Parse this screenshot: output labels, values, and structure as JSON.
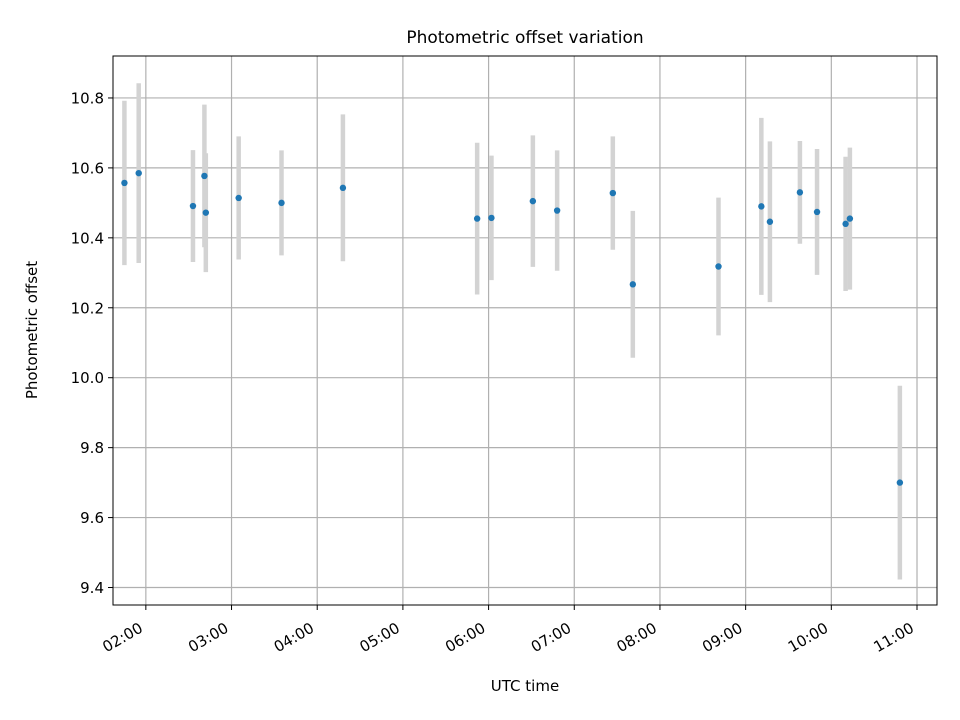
{
  "chart_data": {
    "type": "scatter",
    "title": "Photometric offset variation",
    "xlabel": "UTC time",
    "ylabel": "Photometric offset",
    "x_tick_labels": [
      "02:00",
      "03:00",
      "04:00",
      "05:00",
      "06:00",
      "07:00",
      "08:00",
      "09:00",
      "10:00",
      "11:00"
    ],
    "x_ticks": [
      "02:00",
      "03:00",
      "04:00",
      "05:00",
      "06:00",
      "07:00",
      "08:00",
      "09:00",
      "10:00",
      "11:00"
    ],
    "y_ticks": [
      9.4,
      9.6,
      9.8,
      10.0,
      10.2,
      10.4,
      10.6,
      10.8
    ],
    "y_tick_labels": [
      "9.4",
      "9.6",
      "9.8",
      "10.0",
      "10.2",
      "10.4",
      "10.6",
      "10.8"
    ],
    "xlim": [
      "01:37",
      "11:14"
    ],
    "ylim": [
      9.35,
      10.92
    ],
    "grid": true,
    "colors": {
      "point": "#1f77b4",
      "errorbar": "#d3d3d3",
      "grid": "#b0b0b0"
    },
    "points": [
      {
        "x": "01:45",
        "y": 10.557,
        "err": 0.235
      },
      {
        "x": "01:55",
        "y": 10.585,
        "err": 0.257
      },
      {
        "x": "02:33",
        "y": 10.491,
        "err": 0.16
      },
      {
        "x": "02:41",
        "y": 10.577,
        "err": 0.204
      },
      {
        "x": "02:42",
        "y": 10.472,
        "err": 0.17
      },
      {
        "x": "03:05",
        "y": 10.514,
        "err": 0.176
      },
      {
        "x": "03:35",
        "y": 10.5,
        "err": 0.15
      },
      {
        "x": "04:18",
        "y": 10.543,
        "err": 0.21
      },
      {
        "x": "05:52",
        "y": 10.455,
        "err": 0.217
      },
      {
        "x": "06:02",
        "y": 10.457,
        "err": 0.178
      },
      {
        "x": "06:31",
        "y": 10.505,
        "err": 0.188
      },
      {
        "x": "06:48",
        "y": 10.478,
        "err": 0.172
      },
      {
        "x": "07:27",
        "y": 10.528,
        "err": 0.162
      },
      {
        "x": "07:41",
        "y": 10.267,
        "err": 0.21
      },
      {
        "x": "08:41",
        "y": 10.318,
        "err": 0.197
      },
      {
        "x": "09:11",
        "y": 10.49,
        "err": 0.253
      },
      {
        "x": "09:17",
        "y": 10.446,
        "err": 0.23
      },
      {
        "x": "09:38",
        "y": 10.53,
        "err": 0.147
      },
      {
        "x": "09:50",
        "y": 10.474,
        "err": 0.18
      },
      {
        "x": "10:10",
        "y": 10.44,
        "err": 0.192
      },
      {
        "x": "10:13",
        "y": 10.455,
        "err": 0.203
      },
      {
        "x": "10:48",
        "y": 9.7,
        "err": 0.277
      }
    ]
  }
}
